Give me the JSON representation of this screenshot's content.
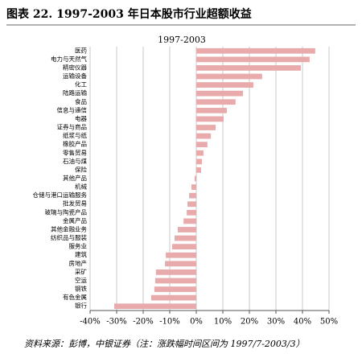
{
  "header": {
    "title": "图表 22. 1997-2003 年日本股市行业超额收益"
  },
  "chart_data": {
    "type": "barh",
    "title": "1997-2003",
    "categories": [
      "医药",
      "电力与天然气",
      "精密仪器",
      "运输设备",
      "化工",
      "陆路运输",
      "食品",
      "信息与通信",
      "电器",
      "证券与商品",
      "纸浆与纸",
      "橡胶产品",
      "零售贸易",
      "石油与煤",
      "保险",
      "其他产品",
      "机械",
      "仓储与港口运输服务",
      "批发贸易",
      "玻璃与陶瓷产品",
      "金属产品",
      "其他金融业务",
      "纺织品与服装",
      "服务业",
      "建筑",
      "房地产",
      "采矿",
      "空运",
      "钢铁",
      "有色金属",
      "银行"
    ],
    "values": [
      44.8,
      42.7,
      39.4,
      24.8,
      21.5,
      17.6,
      14.8,
      11.5,
      10.3,
      7.3,
      5.5,
      4.2,
      2.7,
      2.1,
      1.8,
      -0.6,
      -1.8,
      -2.7,
      -3.3,
      -3.6,
      -4.8,
      -7,
      -8.2,
      -9.1,
      -11.5,
      -11.8,
      -15.2,
      -15.5,
      -15.8,
      -17,
      -30.9
    ],
    "color": "#e8aaaa",
    "xlim": [
      -40,
      50
    ],
    "xticks": [
      {
        "value": -40,
        "label": "-40%"
      },
      {
        "value": -30,
        "label": "-30%"
      },
      {
        "value": -20,
        "label": "-20%"
      },
      {
        "value": -10,
        "label": "-10%"
      },
      {
        "value": 0,
        "label": "0%"
      },
      {
        "value": 10,
        "label": "10%"
      },
      {
        "value": 20,
        "label": "20%"
      },
      {
        "value": 30,
        "label": "30%"
      },
      {
        "value": 40,
        "label": "40%"
      },
      {
        "value": 50,
        "label": "50%"
      }
    ],
    "grid": true
  },
  "footer": {
    "source": "资料来源：彭博，中银证券（注：涨跌幅时间区间为 1997/7-2003/3）"
  }
}
